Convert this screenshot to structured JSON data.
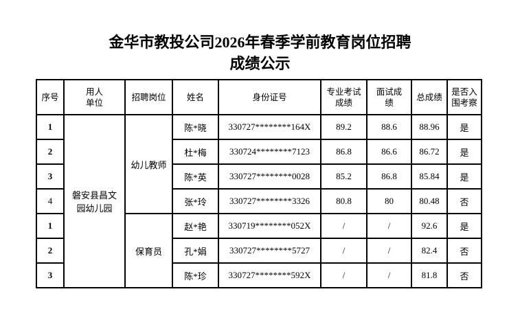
{
  "title_line1": "金华市教投公司2026年春季学前教育岗位招聘",
  "title_line2": "成绩公示",
  "headers": {
    "index": "序号",
    "unit": "用人\n单位",
    "position": "招聘岗位",
    "name": "姓名",
    "id": "身份证号",
    "written": "专业考试\n成绩",
    "interview": "面试成\n绩",
    "total": "总成绩",
    "shortlisted": "是否入\n围考察"
  },
  "unit": "磐安县昌文园幼儿园",
  "positions": [
    "幼儿教师",
    "保育员"
  ],
  "rows": [
    {
      "index": "1",
      "name": "陈*晓",
      "id": "330727********164X",
      "written": "89.2",
      "interview": "88.6",
      "total": "88.96",
      "shortlisted": "是"
    },
    {
      "index": "2",
      "name": "杜*梅",
      "id": "330724********7123",
      "written": "86.8",
      "interview": "86.6",
      "total": "86.72",
      "shortlisted": "是"
    },
    {
      "index": "3",
      "name": "陈*英",
      "id": "330727********0028",
      "written": "85.2",
      "interview": "86.8",
      "total": "85.84",
      "shortlisted": "是"
    },
    {
      "index": "4",
      "name": "张*玲",
      "id": "330727********3326",
      "written": "80.8",
      "interview": "80",
      "total": "80.48",
      "shortlisted": "否"
    },
    {
      "index": "1",
      "name": "赵*艳",
      "id": "330719********052X",
      "written": "/",
      "interview": "/",
      "total": "92.6",
      "shortlisted": "是"
    },
    {
      "index": "2",
      "name": "孔*娟",
      "id": "330727********5727",
      "written": "/",
      "interview": "/",
      "total": "82.4",
      "shortlisted": "否"
    },
    {
      "index": "3",
      "name": "陈*珍",
      "id": "330727********592X",
      "written": "/",
      "interview": "/",
      "total": "81.8",
      "shortlisted": "否"
    }
  ]
}
